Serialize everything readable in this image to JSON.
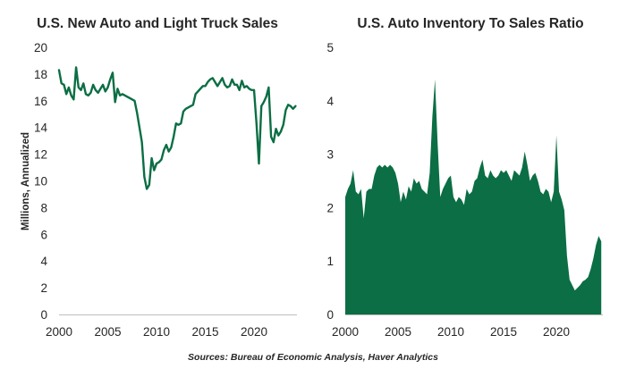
{
  "colors": {
    "series": "#0b6e44",
    "axis": "#bfbfbf",
    "text": "#262626"
  },
  "source_note": "Sources: Bureau of Economic Analysis, Haver Analytics",
  "chart_data": [
    {
      "type": "line",
      "title": "U.S. New Auto and Light Truck Sales",
      "xlabel": "",
      "ylabel": "Millions, Annualized",
      "xlim": [
        2000,
        2024.4
      ],
      "ylim": [
        0,
        20
      ],
      "xticks": [
        2000,
        2005,
        2010,
        2015,
        2020
      ],
      "yticks": [
        0,
        2,
        4,
        6,
        8,
        10,
        12,
        14,
        16,
        18,
        20
      ],
      "series": [
        {
          "name": "U.S. New Auto and Light Truck Sales",
          "x": [
            2000.0,
            2000.25,
            2000.5,
            2000.75,
            2001.0,
            2001.25,
            2001.5,
            2001.75,
            2002.0,
            2002.25,
            2002.5,
            2002.75,
            2003.0,
            2003.25,
            2003.5,
            2003.75,
            2004.0,
            2004.25,
            2004.5,
            2004.75,
            2005.0,
            2005.25,
            2005.5,
            2005.75,
            2006.0,
            2006.25,
            2006.5,
            2006.75,
            2007.0,
            2007.25,
            2007.5,
            2007.75,
            2008.0,
            2008.25,
            2008.5,
            2008.75,
            2009.0,
            2009.25,
            2009.5,
            2009.75,
            2010.0,
            2010.25,
            2010.5,
            2010.75,
            2011.0,
            2011.25,
            2011.5,
            2011.75,
            2012.0,
            2012.25,
            2012.5,
            2012.75,
            2013.0,
            2013.25,
            2013.5,
            2013.75,
            2014.0,
            2014.25,
            2014.5,
            2014.75,
            2015.0,
            2015.25,
            2015.5,
            2015.75,
            2016.0,
            2016.25,
            2016.5,
            2016.75,
            2017.0,
            2017.25,
            2017.5,
            2017.75,
            2018.0,
            2018.25,
            2018.5,
            2018.75,
            2019.0,
            2019.25,
            2019.5,
            2019.75,
            2020.0,
            2020.25,
            2020.5,
            2020.75,
            2021.0,
            2021.25,
            2021.5,
            2021.75,
            2022.0,
            2022.25,
            2022.5,
            2022.75,
            2023.0,
            2023.25,
            2023.5,
            2023.75,
            2024.0,
            2024.25
          ],
          "values": [
            18.3,
            17.3,
            17.2,
            16.5,
            17.0,
            16.4,
            16.1,
            18.5,
            17.0,
            16.8,
            17.3,
            16.5,
            16.4,
            16.6,
            17.2,
            16.8,
            16.6,
            16.9,
            17.2,
            16.7,
            17.0,
            17.6,
            18.1,
            15.9,
            16.9,
            16.4,
            16.5,
            16.4,
            16.3,
            16.2,
            16.1,
            16.0,
            15.1,
            14.0,
            12.9,
            10.3,
            9.4,
            9.7,
            11.7,
            10.8,
            11.3,
            11.4,
            11.6,
            12.3,
            12.7,
            12.2,
            12.5,
            13.3,
            14.3,
            14.2,
            14.3,
            15.2,
            15.4,
            15.5,
            15.6,
            15.7,
            16.5,
            16.7,
            16.9,
            17.1,
            17.1,
            17.4,
            17.6,
            17.7,
            17.4,
            17.1,
            17.4,
            17.7,
            17.2,
            17.0,
            17.1,
            17.6,
            17.2,
            17.2,
            16.8,
            17.5,
            17.0,
            17.1,
            16.9,
            16.8,
            16.8,
            14.3,
            11.3,
            15.6,
            15.9,
            16.3,
            17.0,
            13.3,
            12.9,
            13.9,
            13.4,
            13.7,
            14.2,
            15.3,
            15.7,
            15.6,
            15.4,
            15.6
          ]
        }
      ]
    },
    {
      "type": "area",
      "title": "U.S. Auto Inventory To Sales Ratio",
      "xlabel": "",
      "ylabel": "",
      "xlim": [
        2000,
        2024.4
      ],
      "ylim": [
        0,
        5
      ],
      "xticks": [
        2000,
        2005,
        2010,
        2015,
        2020
      ],
      "yticks": [
        0,
        1,
        2,
        3,
        4,
        5
      ],
      "series": [
        {
          "name": "U.S. Auto Inventory To Sales Ratio",
          "x": [
            2000.0,
            2000.25,
            2000.5,
            2000.75,
            2001.0,
            2001.25,
            2001.5,
            2001.75,
            2002.0,
            2002.25,
            2002.5,
            2002.75,
            2003.0,
            2003.25,
            2003.5,
            2003.75,
            2004.0,
            2004.25,
            2004.5,
            2004.75,
            2005.0,
            2005.25,
            2005.5,
            2005.75,
            2006.0,
            2006.25,
            2006.5,
            2006.75,
            2007.0,
            2007.25,
            2007.5,
            2007.75,
            2008.0,
            2008.25,
            2008.5,
            2008.75,
            2009.0,
            2009.25,
            2009.5,
            2009.75,
            2010.0,
            2010.25,
            2010.5,
            2010.75,
            2011.0,
            2011.25,
            2011.5,
            2011.75,
            2012.0,
            2012.25,
            2012.5,
            2012.75,
            2013.0,
            2013.25,
            2013.5,
            2013.75,
            2014.0,
            2014.25,
            2014.5,
            2014.75,
            2015.0,
            2015.25,
            2015.5,
            2015.75,
            2016.0,
            2016.25,
            2016.5,
            2016.75,
            2017.0,
            2017.25,
            2017.5,
            2017.75,
            2018.0,
            2018.25,
            2018.5,
            2018.75,
            2019.0,
            2019.25,
            2019.5,
            2019.75,
            2020.0,
            2020.25,
            2020.5,
            2020.75,
            2021.0,
            2021.25,
            2021.5,
            2021.75,
            2022.0,
            2022.25,
            2022.5,
            2022.75,
            2023.0,
            2023.25,
            2023.5,
            2023.75,
            2024.0,
            2024.25
          ],
          "values": [
            2.2,
            2.35,
            2.45,
            2.7,
            2.3,
            2.25,
            2.35,
            1.8,
            2.3,
            2.35,
            2.35,
            2.6,
            2.75,
            2.8,
            2.75,
            2.8,
            2.75,
            2.8,
            2.75,
            2.65,
            2.45,
            2.1,
            2.3,
            2.15,
            2.4,
            2.3,
            2.55,
            2.45,
            2.5,
            2.35,
            2.3,
            2.25,
            2.65,
            3.7,
            4.4,
            3.2,
            2.2,
            2.35,
            2.45,
            2.55,
            2.6,
            2.2,
            2.1,
            2.2,
            2.15,
            2.05,
            2.35,
            2.25,
            2.3,
            2.5,
            2.55,
            2.75,
            2.9,
            2.6,
            2.55,
            2.7,
            2.6,
            2.55,
            2.6,
            2.7,
            2.65,
            2.7,
            2.6,
            2.5,
            2.7,
            2.65,
            2.6,
            2.75,
            3.05,
            2.8,
            2.5,
            2.6,
            2.65,
            2.5,
            2.3,
            2.25,
            2.35,
            2.3,
            2.1,
            2.3,
            3.35,
            2.3,
            2.15,
            1.95,
            1.1,
            0.65,
            0.55,
            0.45,
            0.5,
            0.55,
            0.62,
            0.65,
            0.7,
            0.85,
            1.05,
            1.3,
            1.47,
            1.37
          ]
        }
      ]
    }
  ]
}
